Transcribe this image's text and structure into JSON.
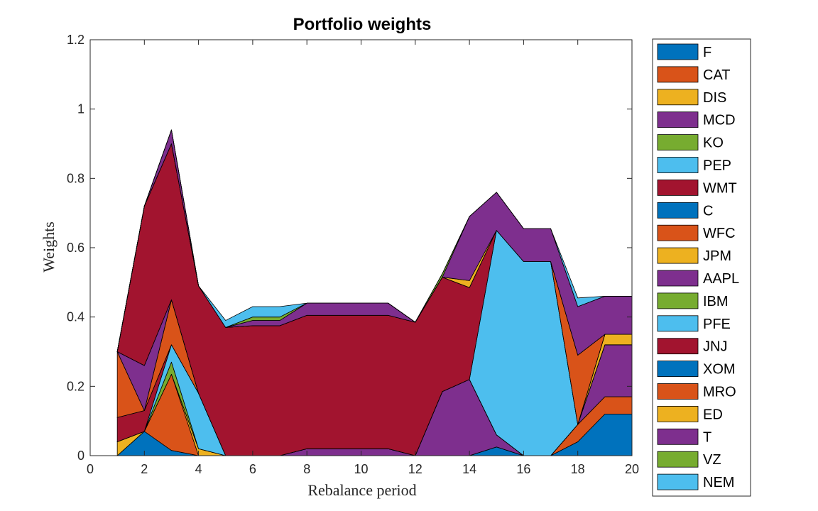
{
  "chart_data": {
    "type": "area",
    "title": "Portfolio weights",
    "xlabel": "Rebalance period",
    "ylabel": "Weights",
    "xlim": [
      0,
      20
    ],
    "ylim": [
      0,
      1.2
    ],
    "xticks": [
      "0",
      "2",
      "4",
      "6",
      "8",
      "10",
      "12",
      "14",
      "16",
      "18",
      "20"
    ],
    "yticks": [
      "0",
      "0.2",
      "0.4",
      "0.6",
      "0.8",
      "1",
      "1.2"
    ],
    "grid": false,
    "legend_position": "outside-right",
    "x": [
      1,
      2,
      3,
      4,
      5,
      6,
      7,
      8,
      9,
      10,
      11,
      12,
      13,
      14,
      15,
      16,
      17,
      18,
      19,
      20
    ],
    "series": [
      {
        "name": "F",
        "color": "#0072BD",
        "values": [
          0,
          0.07,
          0.015,
          0,
          0,
          0,
          0,
          0,
          0,
          0,
          0,
          0,
          0,
          0,
          0.025,
          0,
          0,
          0.04,
          0.12,
          0.12
        ]
      },
      {
        "name": "CAT",
        "color": "#D95319",
        "values": [
          0,
          0,
          0.22,
          0,
          0,
          0,
          0,
          0,
          0,
          0,
          0,
          0,
          0,
          0,
          0,
          0,
          0,
          0.05,
          0.05,
          0.05
        ]
      },
      {
        "name": "DIS",
        "color": "#EDB120",
        "values": [
          0.04,
          0,
          0,
          0.02,
          0,
          0,
          0,
          0,
          0,
          0,
          0,
          0,
          0,
          0,
          0,
          0,
          0,
          0,
          0,
          0
        ]
      },
      {
        "name": "MCD",
        "color": "#7E2F8E",
        "values": [
          0,
          0,
          0,
          0,
          0,
          0,
          0,
          0.02,
          0.02,
          0.02,
          0.02,
          0,
          0.185,
          0.22,
          0.035,
          0,
          0,
          0,
          0.15,
          0.15
        ]
      },
      {
        "name": "KO",
        "color": "#77AC30",
        "values": [
          0,
          0,
          0.035,
          0,
          0,
          0,
          0,
          0,
          0,
          0,
          0,
          0,
          0,
          0,
          0,
          0,
          0,
          0,
          0,
          0
        ]
      },
      {
        "name": "PEP",
        "color": "#4DBEEE",
        "values": [
          0,
          0,
          0.05,
          0.16,
          0,
          0,
          0,
          0,
          0,
          0,
          0,
          0,
          0,
          0,
          0,
          0,
          0,
          0,
          0,
          0
        ]
      },
      {
        "name": "WMT",
        "color": "#A2142F",
        "values": [
          0.07,
          0.06,
          0,
          0,
          0,
          0,
          0,
          0,
          0,
          0,
          0,
          0,
          0,
          0,
          0,
          0,
          0,
          0,
          0,
          0
        ]
      },
      {
        "name": "C",
        "color": "#0072BD",
        "values": [
          0,
          0,
          0,
          0,
          0,
          0,
          0,
          0,
          0,
          0,
          0,
          0,
          0,
          0,
          0,
          0,
          0,
          0,
          0,
          0
        ]
      },
      {
        "name": "WFC",
        "color": "#D95319",
        "values": [
          0.19,
          0,
          0.13,
          0,
          0,
          0,
          0,
          0,
          0,
          0,
          0,
          0,
          0,
          0,
          0,
          0,
          0,
          0,
          0,
          0
        ]
      },
      {
        "name": "JPM",
        "color": "#EDB120",
        "values": [
          0,
          0,
          0,
          0,
          0,
          0,
          0,
          0,
          0,
          0,
          0,
          0,
          0,
          0,
          0,
          0,
          0,
          0,
          0.03,
          0.03
        ]
      },
      {
        "name": "AAPL",
        "color": "#7E2F8E",
        "values": [
          0,
          0.13,
          0,
          0,
          0,
          0,
          0,
          0,
          0,
          0,
          0,
          0,
          0,
          0,
          0,
          0,
          0,
          0,
          0,
          0
        ]
      },
      {
        "name": "IBM",
        "color": "#77AC30",
        "values": [
          0,
          0,
          0,
          0,
          0,
          0,
          0,
          0,
          0,
          0,
          0,
          0,
          0,
          0,
          0,
          0,
          0,
          0,
          0,
          0
        ]
      },
      {
        "name": "PFE",
        "color": "#4DBEEE",
        "values": [
          0,
          0,
          0,
          0,
          0,
          0,
          0,
          0,
          0,
          0,
          0,
          0,
          0,
          0,
          0.59,
          0.56,
          0.56,
          0,
          0,
          0
        ]
      },
      {
        "name": "JNJ",
        "color": "#A2142F",
        "values": [
          0,
          0.46,
          0.45,
          0.31,
          0.37,
          0.375,
          0.375,
          0.385,
          0.385,
          0.385,
          0.385,
          0.385,
          0.33,
          0.265,
          0,
          0,
          0,
          0,
          0,
          0
        ]
      },
      {
        "name": "XOM",
        "color": "#0072BD",
        "values": [
          0,
          0,
          0,
          0,
          0,
          0,
          0,
          0,
          0,
          0,
          0,
          0,
          0,
          0,
          0,
          0,
          0,
          0,
          0,
          0
        ]
      },
      {
        "name": "MRO",
        "color": "#D95319",
        "values": [
          0,
          0,
          0,
          0,
          0,
          0,
          0,
          0,
          0,
          0,
          0,
          0,
          0,
          0,
          0,
          0,
          0,
          0.2,
          0,
          0
        ]
      },
      {
        "name": "ED",
        "color": "#EDB120",
        "values": [
          0,
          0,
          0,
          0,
          0,
          0,
          0,
          0,
          0,
          0,
          0,
          0,
          0,
          0.02,
          0,
          0,
          0,
          0,
          0,
          0
        ]
      },
      {
        "name": "T",
        "color": "#7E2F8E",
        "values": [
          0,
          0,
          0.04,
          0,
          0,
          0.015,
          0.015,
          0.035,
          0.035,
          0.035,
          0.035,
          0,
          0,
          0.185,
          0.11,
          0.095,
          0.095,
          0.14,
          0.11,
          0.11
        ]
      },
      {
        "name": "VZ",
        "color": "#77AC30",
        "values": [
          0,
          0,
          0,
          0,
          0,
          0.01,
          0.01,
          0,
          0,
          0,
          0,
          0,
          0.01,
          0,
          0,
          0,
          0,
          0,
          0,
          0
        ]
      },
      {
        "name": "NEM",
        "color": "#4DBEEE",
        "values": [
          0,
          0,
          0,
          0,
          0.02,
          0.03,
          0.03,
          0,
          0,
          0,
          0,
          0,
          0,
          0,
          0,
          0,
          0,
          0.025,
          0,
          0
        ]
      }
    ]
  }
}
